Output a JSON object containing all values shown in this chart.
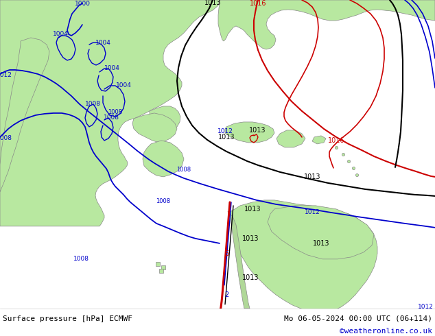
{
  "title_left": "Surface pressure [hPa] ECMWF",
  "title_right": "Mo 06-05-2024 00:00 UTC (06+114)",
  "credit": "©weatheronline.co.uk",
  "water_color": "#d8d8d8",
  "land_color": "#b8e8a0",
  "coast_color": "#888888",
  "credit_color": "#0000cc",
  "blue_iso": "#0000cc",
  "black_iso": "#000000",
  "red_iso": "#cc0000"
}
